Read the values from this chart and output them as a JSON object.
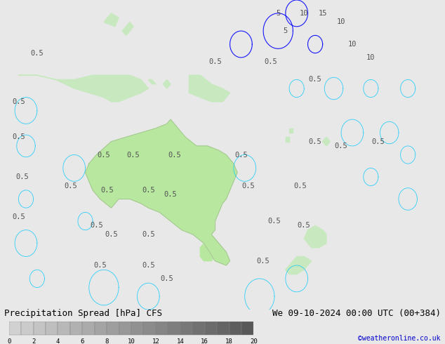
{
  "title_left": "Precipitation Spread [hPa] CFS",
  "title_right": "We 09-10-2024 00:00 UTC (00+384)",
  "credit": "©weatheronline.co.uk",
  "colorbar_ticks": [
    0,
    2,
    4,
    6,
    8,
    10,
    12,
    14,
    16,
    18,
    20
  ],
  "colorbar_colors": [
    "#d0d0d0",
    "#c0c0c0",
    "#b0b0b0",
    "#a0a0a0",
    "#909090",
    "#808080",
    "#707070",
    "#606060",
    "#505050",
    "#404040",
    "#303030"
  ],
  "bg_color": "#e8e8e8",
  "map_bg": "#d8e8f8",
  "land_color": "#c8e8c0",
  "australia_color": "#b8e8a0",
  "contour_color_cyan": "#00c8ff",
  "contour_color_blue": "#0000ff",
  "label_color": "#505050",
  "label_fontsize": 7.5,
  "title_fontsize": 9,
  "credit_color": "#0000cc",
  "credit_fontsize": 7
}
